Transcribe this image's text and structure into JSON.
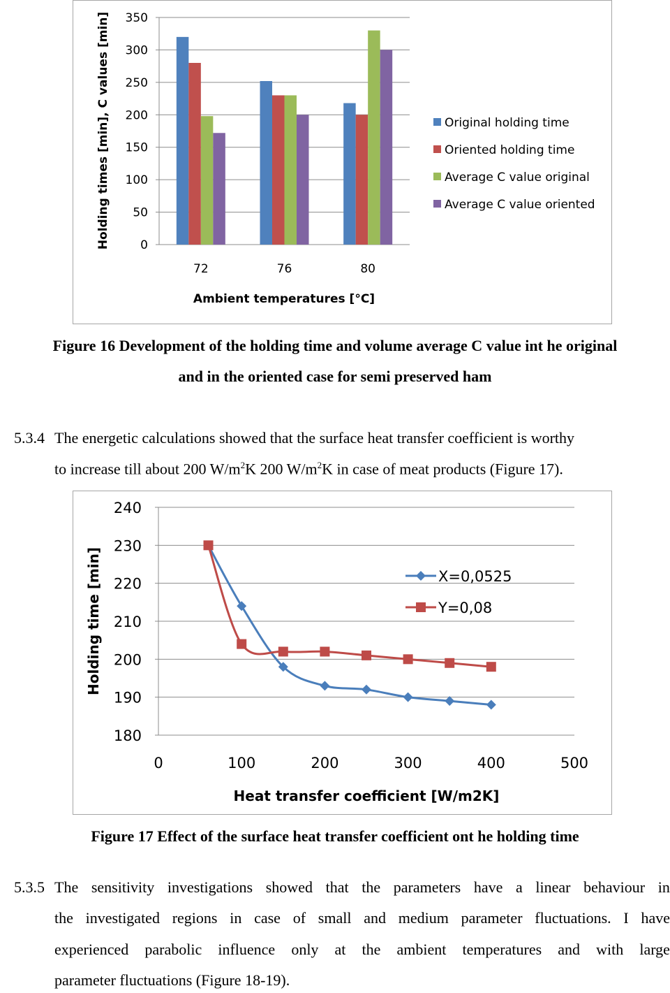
{
  "figure16": {
    "chart_data": {
      "type": "bar",
      "title": "",
      "xlabel": "Ambient temperatures   [°C]",
      "ylabel": "Holding times [min], C values [min]",
      "categories": [
        "72",
        "76",
        "80"
      ],
      "ylim": [
        0,
        350
      ],
      "yticks": [
        "0",
        "50",
        "100",
        "150",
        "200",
        "250",
        "300",
        "350"
      ],
      "grid": true,
      "legend_position": "right",
      "series": [
        {
          "name": "Original holding time",
          "values": [
            320,
            252,
            218
          ],
          "color": "#4f81bd"
        },
        {
          "name": "Oriented holding time",
          "values": [
            280,
            230,
            200
          ],
          "color": "#c0504d"
        },
        {
          "name": "Average C value original",
          "values": [
            198,
            230,
            330
          ],
          "color": "#9bbb59"
        },
        {
          "name": "Average C value oriented",
          "values": [
            172,
            200,
            300
          ],
          "color": "#8064a2"
        }
      ]
    },
    "caption_line1": "Figure 16 Development of the holding time and volume average C value int he original",
    "caption_line2": "and in the oriented case for semi preserved ham"
  },
  "para_534": {
    "number": "5.3.4",
    "line1": "The energetic calculations showed that the surface heat transfer coefficient is worthy",
    "line2_a": "to increase till about 200 W/m",
    "sup1": "2",
    "line2_b": "K 200 W/m",
    "sup2": "2",
    "line2_c": "K in case of meat products (Figure 17)."
  },
  "figure17": {
    "chart_data": {
      "type": "line",
      "title": "",
      "xlabel": "Heat transfer coefficient [W/m2K]",
      "ylabel": "Holding time [min]",
      "xlim": [
        0,
        500
      ],
      "ylim": [
        180,
        240
      ],
      "xticks": [
        "0",
        "100",
        "200",
        "300",
        "400",
        "500"
      ],
      "yticks": [
        "180",
        "190",
        "200",
        "210",
        "220",
        "230",
        "240"
      ],
      "grid": true,
      "legend_position": "right",
      "series": [
        {
          "name": "X=0,0525",
          "color": "#4a7ebb",
          "marker": "diamond",
          "x": [
            60,
            100,
            150,
            200,
            250,
            300,
            350,
            400
          ],
          "y": [
            230,
            214,
            198,
            193,
            192,
            190,
            189,
            188
          ]
        },
        {
          "name": "Y=0,08",
          "color": "#be4b48",
          "marker": "square",
          "x": [
            60,
            100,
            150,
            200,
            250,
            300,
            350,
            400
          ],
          "y": [
            230,
            204,
            202,
            202,
            201,
            200,
            199,
            198
          ]
        }
      ]
    },
    "caption": "Figure 17 Effect of the surface heat transfer coefficient ont he holding time"
  },
  "para_535": {
    "number": "5.3.5",
    "line1_words": [
      "The",
      "sensitivity",
      "investigations",
      "showed",
      "that",
      "the",
      "parameters",
      "have",
      "a",
      "linear",
      "behaviour",
      "in"
    ],
    "line2_words": [
      "the",
      "investigated",
      "regions",
      "in",
      "case",
      "of",
      "small",
      "and",
      "medium",
      "parameter",
      "fluctuations.",
      "I",
      "have"
    ],
    "line3_words": [
      "experienced",
      "parabolic",
      "influence",
      "only",
      "at",
      "the",
      "ambient",
      "temperatures",
      "and",
      "with",
      "large"
    ],
    "line4": "parameter fluctuations (Figure 18-19)."
  }
}
